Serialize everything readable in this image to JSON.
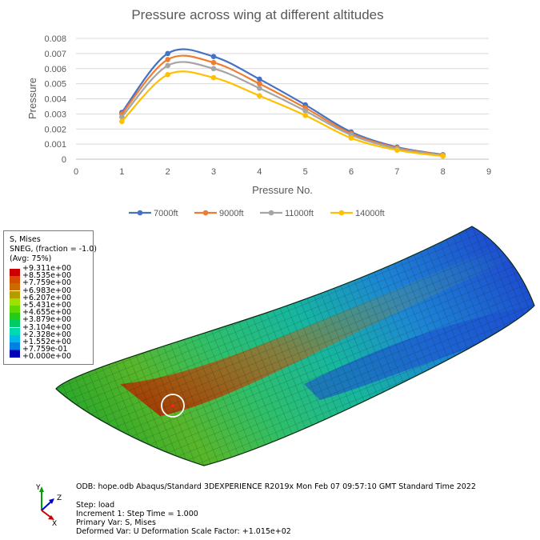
{
  "chart_data": {
    "type": "line",
    "title": "Pressure across wing at different altitudes",
    "xlabel": "Pressure No.",
    "ylabel": "Pressure",
    "xlim": [
      0,
      9
    ],
    "ylim": [
      0,
      0.008
    ],
    "x_ticks": [
      "0",
      "1",
      "2",
      "3",
      "4",
      "5",
      "6",
      "7",
      "8",
      "9"
    ],
    "y_ticks": [
      "0",
      "0.001",
      "0.002",
      "0.003",
      "0.004",
      "0.005",
      "0.006",
      "0.007",
      "0.008"
    ],
    "grid": "horizontal",
    "legend_position": "bottom",
    "smooth": true,
    "x": [
      1,
      2,
      3,
      4,
      5,
      6,
      7,
      8
    ],
    "series": [
      {
        "name": "7000ft",
        "color": "#4472c4",
        "values": [
          0.0031,
          0.007,
          0.0068,
          0.0053,
          0.0036,
          0.0018,
          0.0008,
          0.0003
        ]
      },
      {
        "name": "9000ft",
        "color": "#ed7d31",
        "values": [
          0.003,
          0.0066,
          0.0064,
          0.005,
          0.0034,
          0.0017,
          0.00075,
          0.00028
        ]
      },
      {
        "name": "11000ft",
        "color": "#a5a5a5",
        "values": [
          0.0028,
          0.0062,
          0.006,
          0.0047,
          0.0032,
          0.0016,
          0.0007,
          0.00025
        ]
      },
      {
        "name": "14000ft",
        "color": "#ffc000",
        "values": [
          0.0025,
          0.0056,
          0.0054,
          0.0042,
          0.0029,
          0.0014,
          0.0006,
          0.0002
        ]
      }
    ]
  },
  "fea_legend": {
    "title_line1": "S, Mises",
    "title_line2": "SNEG, (fraction = -1.0)",
    "title_line3": "(Avg: 75%)",
    "levels": [
      {
        "label": "+9.311e+00",
        "color": "#cc0000"
      },
      {
        "label": "+8.535e+00",
        "color": "#d84a00"
      },
      {
        "label": "+7.759e+00",
        "color": "#cc6a00"
      },
      {
        "label": "+6.983e+00",
        "color": "#b59a00"
      },
      {
        "label": "+6.207e+00",
        "color": "#9fe000"
      },
      {
        "label": "+5.431e+00",
        "color": "#5ed800"
      },
      {
        "label": "+4.655e+00",
        "color": "#22cc1a"
      },
      {
        "label": "+3.879e+00",
        "color": "#00cc66"
      },
      {
        "label": "+3.104e+00",
        "color": "#00d9b0"
      },
      {
        "label": "+2.328e+00",
        "color": "#00b8e8"
      },
      {
        "label": "+1.552e+00",
        "color": "#0080e0"
      },
      {
        "label": "+7.759e-01",
        "color": "#0040cc"
      },
      {
        "label": "+0.000e+00",
        "color": "#0000b4"
      }
    ]
  },
  "fea_info": {
    "line1": "ODB: hope.odb    Abaqus/Standard 3DEXPERIENCE R2019x    Mon Feb 07 09:57:10 GMT Standard Time 2022",
    "line2": "Step: load",
    "line3": "Increment      1: Step Time =     1.000",
    "line4": "Primary Var: S, Mises",
    "line5": "Deformed Var: U   Deformation Scale Factor: +1.015e+02"
  },
  "axis_triad": {
    "y": "Y",
    "z": "Z",
    "x": "X",
    "y_color": "#00a000",
    "z_color": "#0000cc",
    "x_color": "#cc0000"
  }
}
